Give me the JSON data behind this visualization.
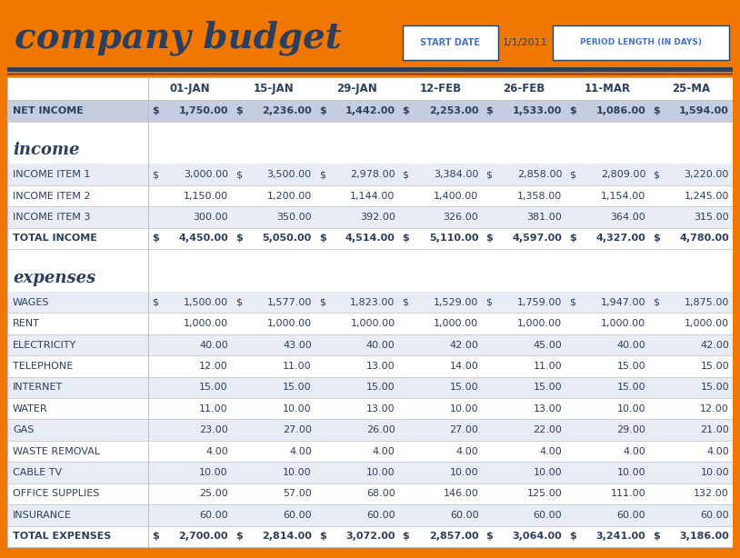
{
  "title": "company budget",
  "start_date_label": "START DATE",
  "start_date_value": "1/1/2011",
  "period_label": "PERIOD LENGTH (IN DAYS)",
  "orange_color": "#F07800",
  "dark_blue": "#2D3F5E",
  "light_blue_text": "#4472C4",
  "net_income_bg": "#C5CDE0",
  "stripe_bg": "#E8EDF5",
  "white": "#FFFFFF",
  "grid_color": "#C0C0C0",
  "column_headers": [
    "01-JAN",
    "15-JAN",
    "29-JAN",
    "12-FEB",
    "26-FEB",
    "11-MAR",
    "25-MA"
  ],
  "rows": [
    {
      "label": "NET INCOME",
      "dollar": true,
      "bold": true,
      "bg": "#C5CDE0",
      "values": [
        1750.0,
        2236.0,
        1442.0,
        2253.0,
        1533.0,
        1086.0,
        1594.0
      ],
      "type": "data"
    },
    {
      "label": "",
      "type": "spacer"
    },
    {
      "label": "income",
      "type": "section"
    },
    {
      "label": "INCOME ITEM 1",
      "dollar": true,
      "bold": false,
      "bg": "#E8EDF5",
      "values": [
        3000.0,
        3500.0,
        2978.0,
        3384.0,
        2858.0,
        2809.0,
        3220.0
      ],
      "type": "data"
    },
    {
      "label": "INCOME ITEM 2",
      "dollar": false,
      "bold": false,
      "bg": "#FFFFFF",
      "values": [
        1150.0,
        1200.0,
        1144.0,
        1400.0,
        1358.0,
        1154.0,
        1245.0
      ],
      "type": "data"
    },
    {
      "label": "INCOME ITEM 3",
      "dollar": false,
      "bold": false,
      "bg": "#E8EDF5",
      "values": [
        300.0,
        350.0,
        392.0,
        326.0,
        381.0,
        364.0,
        315.0
      ],
      "type": "data"
    },
    {
      "label": "TOTAL INCOME",
      "dollar": true,
      "bold": true,
      "bg": "#FFFFFF",
      "values": [
        4450.0,
        5050.0,
        4514.0,
        5110.0,
        4597.0,
        4327.0,
        4780.0
      ],
      "type": "data"
    },
    {
      "label": "",
      "type": "spacer"
    },
    {
      "label": "expenses",
      "type": "section"
    },
    {
      "label": "WAGES",
      "dollar": true,
      "bold": false,
      "bg": "#E8EDF5",
      "values": [
        1500.0,
        1577.0,
        1823.0,
        1529.0,
        1759.0,
        1947.0,
        1875.0
      ],
      "type": "data"
    },
    {
      "label": "RENT",
      "dollar": false,
      "bold": false,
      "bg": "#FFFFFF",
      "values": [
        1000.0,
        1000.0,
        1000.0,
        1000.0,
        1000.0,
        1000.0,
        1000.0
      ],
      "type": "data"
    },
    {
      "label": "ELECTRICITY",
      "dollar": false,
      "bold": false,
      "bg": "#E8EDF5",
      "values": [
        40.0,
        43.0,
        40.0,
        42.0,
        45.0,
        40.0,
        42.0
      ],
      "type": "data"
    },
    {
      "label": "TELEPHONE",
      "dollar": false,
      "bold": false,
      "bg": "#FFFFFF",
      "values": [
        12.0,
        11.0,
        13.0,
        14.0,
        11.0,
        15.0,
        15.0
      ],
      "type": "data"
    },
    {
      "label": "INTERNET",
      "dollar": false,
      "bold": false,
      "bg": "#E8EDF5",
      "values": [
        15.0,
        15.0,
        15.0,
        15.0,
        15.0,
        15.0,
        15.0
      ],
      "type": "data"
    },
    {
      "label": "WATER",
      "dollar": false,
      "bold": false,
      "bg": "#FFFFFF",
      "values": [
        11.0,
        10.0,
        13.0,
        10.0,
        13.0,
        10.0,
        12.0
      ],
      "type": "data"
    },
    {
      "label": "GAS",
      "dollar": false,
      "bold": false,
      "bg": "#E8EDF5",
      "values": [
        23.0,
        27.0,
        26.0,
        27.0,
        22.0,
        29.0,
        21.0
      ],
      "type": "data"
    },
    {
      "label": "WASTE REMOVAL",
      "dollar": false,
      "bold": false,
      "bg": "#FFFFFF",
      "values": [
        4.0,
        4.0,
        4.0,
        4.0,
        4.0,
        4.0,
        4.0
      ],
      "type": "data"
    },
    {
      "label": "CABLE TV",
      "dollar": false,
      "bold": false,
      "bg": "#E8EDF5",
      "values": [
        10.0,
        10.0,
        10.0,
        10.0,
        10.0,
        10.0,
        10.0
      ],
      "type": "data"
    },
    {
      "label": "OFFICE SUPPLIES",
      "dollar": false,
      "bold": false,
      "bg": "#FFFFFF",
      "values": [
        25.0,
        57.0,
        68.0,
        146.0,
        125.0,
        111.0,
        132.0
      ],
      "type": "data"
    },
    {
      "label": "INSURANCE",
      "dollar": false,
      "bold": false,
      "bg": "#E8EDF5",
      "values": [
        60.0,
        60.0,
        60.0,
        60.0,
        60.0,
        60.0,
        60.0
      ],
      "type": "data"
    },
    {
      "label": "TOTAL EXPENSES",
      "dollar": true,
      "bold": true,
      "bg": "#FFFFFF",
      "values": [
        2700.0,
        2814.0,
        3072.0,
        2857.0,
        3064.0,
        3241.0,
        3186.0
      ],
      "type": "data"
    }
  ]
}
